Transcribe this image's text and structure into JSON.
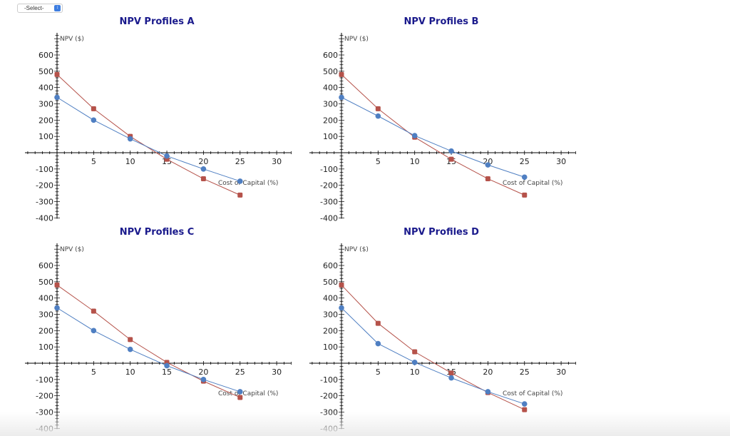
{
  "select": {
    "value": "-Select-",
    "icon": "updown-chevron-icon"
  },
  "colors": {
    "project_red": "#b5524a",
    "project_blue": "#4f7fc2",
    "title": "#1a1a8c",
    "axis": "#000000"
  },
  "chart_data": [
    {
      "type": "line",
      "title": "NPV Profiles A",
      "xlabel": "Cost of Capital (%)",
      "ylabel": "NPV ($)",
      "xlim": [
        0,
        30
      ],
      "ylim": [
        -400,
        600
      ],
      "xticks": [
        5,
        10,
        15,
        20,
        25,
        30
      ],
      "yticks": [
        -400,
        -300,
        -200,
        -100,
        100,
        200,
        300,
        400,
        500,
        600
      ],
      "grid": false,
      "x": [
        0,
        5,
        10,
        15,
        20,
        25
      ],
      "series": [
        {
          "color": "#b5524a",
          "marker": "square",
          "values": [
            480,
            270,
            100,
            -40,
            -160,
            -260
          ]
        },
        {
          "color": "#4f7fc2",
          "marker": "circle",
          "values": [
            340,
            200,
            85,
            -20,
            -100,
            -175
          ]
        }
      ]
    },
    {
      "type": "line",
      "title": "NPV Profiles B",
      "xlabel": "Cost of Capital (%)",
      "ylabel": "NPV ($)",
      "xlim": [
        0,
        30
      ],
      "ylim": [
        -400,
        600
      ],
      "xticks": [
        5,
        10,
        15,
        20,
        25,
        30
      ],
      "yticks": [
        -400,
        -300,
        -200,
        -100,
        100,
        200,
        300,
        400,
        500,
        600
      ],
      "grid": false,
      "x": [
        0,
        5,
        10,
        15,
        20,
        25
      ],
      "series": [
        {
          "color": "#b5524a",
          "marker": "square",
          "values": [
            480,
            270,
            95,
            -40,
            -160,
            -260
          ]
        },
        {
          "color": "#4f7fc2",
          "marker": "circle",
          "values": [
            340,
            225,
            105,
            10,
            -75,
            -150
          ]
        }
      ]
    },
    {
      "type": "line",
      "title": "NPV Profiles C",
      "xlabel": "Cost of Capital (%)",
      "ylabel": "NPV ($)",
      "xlim": [
        0,
        30
      ],
      "ylim": [
        -400,
        600
      ],
      "xticks": [
        5,
        10,
        15,
        20,
        25,
        30
      ],
      "yticks": [
        -400,
        -300,
        -200,
        -100,
        100,
        200,
        300,
        400,
        500,
        600
      ],
      "grid": false,
      "x": [
        0,
        5,
        10,
        15,
        20,
        25
      ],
      "series": [
        {
          "color": "#b5524a",
          "marker": "square",
          "values": [
            480,
            320,
            145,
            5,
            -110,
            -210
          ]
        },
        {
          "color": "#4f7fc2",
          "marker": "circle",
          "values": [
            340,
            200,
            85,
            -15,
            -100,
            -175
          ]
        }
      ]
    },
    {
      "type": "line",
      "title": "NPV Profiles D",
      "xlabel": "Cost of Capital (%)",
      "ylabel": "NPV ($)",
      "xlim": [
        0,
        30
      ],
      "ylim": [
        -400,
        600
      ],
      "xticks": [
        5,
        10,
        15,
        20,
        25,
        30
      ],
      "yticks": [
        -400,
        -300,
        -200,
        -100,
        100,
        200,
        300,
        400,
        500,
        600
      ],
      "grid": false,
      "x": [
        0,
        5,
        10,
        15,
        20,
        25
      ],
      "series": [
        {
          "color": "#b5524a",
          "marker": "square",
          "values": [
            480,
            245,
            70,
            -60,
            -180,
            -285
          ]
        },
        {
          "color": "#4f7fc2",
          "marker": "circle",
          "values": [
            340,
            120,
            5,
            -90,
            -175,
            -250
          ]
        }
      ]
    }
  ]
}
